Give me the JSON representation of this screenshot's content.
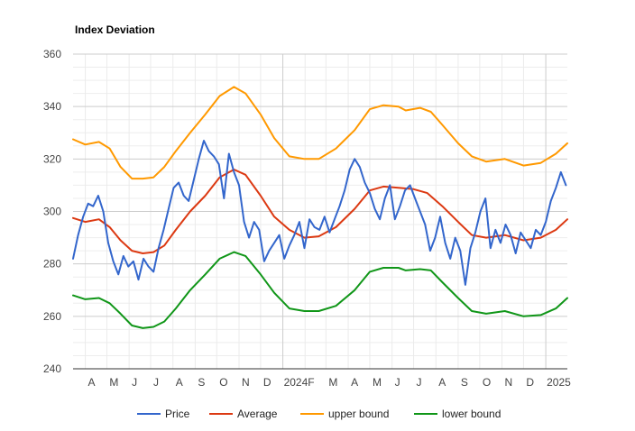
{
  "chart_data": {
    "type": "line",
    "title": "Index Deviation",
    "xlabel": "",
    "ylabel": "",
    "ylim": [
      240,
      360
    ],
    "yticks": [
      240,
      260,
      280,
      300,
      320,
      340,
      360
    ],
    "x_range": [
      "2023-03-15",
      "2025-01-31"
    ],
    "x_ticks": [
      {
        "date": "2023-04-01",
        "label": "A"
      },
      {
        "date": "2023-05-01",
        "label": "M"
      },
      {
        "date": "2023-06-01",
        "label": "J"
      },
      {
        "date": "2023-07-01",
        "label": "J"
      },
      {
        "date": "2023-08-01",
        "label": "A"
      },
      {
        "date": "2023-09-01",
        "label": "S"
      },
      {
        "date": "2023-10-01",
        "label": "O"
      },
      {
        "date": "2023-11-01",
        "label": "N"
      },
      {
        "date": "2023-12-01",
        "label": "D"
      },
      {
        "date": "2024-01-01",
        "label": "2024"
      },
      {
        "date": "2024-02-01",
        "label": "F"
      },
      {
        "date": "2024-03-01",
        "label": "M"
      },
      {
        "date": "2024-04-01",
        "label": "A"
      },
      {
        "date": "2024-05-01",
        "label": "M"
      },
      {
        "date": "2024-06-01",
        "label": "J"
      },
      {
        "date": "2024-07-01",
        "label": "J"
      },
      {
        "date": "2024-08-01",
        "label": "A"
      },
      {
        "date": "2024-09-01",
        "label": "S"
      },
      {
        "date": "2024-10-01",
        "label": "O"
      },
      {
        "date": "2024-11-01",
        "label": "N"
      },
      {
        "date": "2024-12-01",
        "label": "D"
      },
      {
        "date": "2025-01-01",
        "label": "2025"
      }
    ],
    "grid": true,
    "legend_position": "bottom",
    "series": [
      {
        "name": "Price",
        "color": "#3366cc",
        "points": [
          [
            "2023-03-15",
            282
          ],
          [
            "2023-03-22",
            291
          ],
          [
            "2023-03-29",
            298
          ],
          [
            "2023-04-05",
            303
          ],
          [
            "2023-04-12",
            302
          ],
          [
            "2023-04-19",
            306
          ],
          [
            "2023-04-26",
            300
          ],
          [
            "2023-05-03",
            288
          ],
          [
            "2023-05-10",
            281
          ],
          [
            "2023-05-17",
            276
          ],
          [
            "2023-05-24",
            283
          ],
          [
            "2023-05-31",
            279
          ],
          [
            "2023-06-07",
            281
          ],
          [
            "2023-06-14",
            274
          ],
          [
            "2023-06-21",
            282
          ],
          [
            "2023-06-28",
            279
          ],
          [
            "2023-07-05",
            277
          ],
          [
            "2023-07-12",
            286
          ],
          [
            "2023-07-19",
            293
          ],
          [
            "2023-07-26",
            301
          ],
          [
            "2023-08-02",
            309
          ],
          [
            "2023-08-09",
            311
          ],
          [
            "2023-08-16",
            306
          ],
          [
            "2023-08-23",
            304
          ],
          [
            "2023-08-30",
            312
          ],
          [
            "2023-09-06",
            320
          ],
          [
            "2023-09-13",
            327
          ],
          [
            "2023-09-20",
            323
          ],
          [
            "2023-09-27",
            321
          ],
          [
            "2023-10-04",
            318
          ],
          [
            "2023-10-11",
            305
          ],
          [
            "2023-10-18",
            322
          ],
          [
            "2023-10-25",
            315
          ],
          [
            "2023-11-01",
            310
          ],
          [
            "2023-11-08",
            296
          ],
          [
            "2023-11-15",
            290
          ],
          [
            "2023-11-22",
            296
          ],
          [
            "2023-11-29",
            293
          ],
          [
            "2023-12-06",
            281
          ],
          [
            "2023-12-13",
            285
          ],
          [
            "2023-12-20",
            288
          ],
          [
            "2023-12-27",
            291
          ],
          [
            "2024-01-03",
            282
          ],
          [
            "2024-01-10",
            287
          ],
          [
            "2024-01-17",
            291
          ],
          [
            "2024-01-24",
            296
          ],
          [
            "2024-01-31",
            286
          ],
          [
            "2024-02-07",
            297
          ],
          [
            "2024-02-14",
            294
          ],
          [
            "2024-02-21",
            293
          ],
          [
            "2024-02-28",
            298
          ],
          [
            "2024-03-06",
            292
          ],
          [
            "2024-03-13",
            297
          ],
          [
            "2024-03-20",
            302
          ],
          [
            "2024-03-27",
            308
          ],
          [
            "2024-04-03",
            316
          ],
          [
            "2024-04-10",
            320
          ],
          [
            "2024-04-17",
            317
          ],
          [
            "2024-04-24",
            311
          ],
          [
            "2024-05-01",
            307
          ],
          [
            "2024-05-08",
            301
          ],
          [
            "2024-05-15",
            297
          ],
          [
            "2024-05-22",
            305
          ],
          [
            "2024-05-29",
            310
          ],
          [
            "2024-06-05",
            297
          ],
          [
            "2024-06-12",
            302
          ],
          [
            "2024-06-19",
            308
          ],
          [
            "2024-06-26",
            310
          ],
          [
            "2024-07-03",
            305
          ],
          [
            "2024-07-10",
            300
          ],
          [
            "2024-07-17",
            295
          ],
          [
            "2024-07-24",
            285
          ],
          [
            "2024-07-31",
            290
          ],
          [
            "2024-08-07",
            298
          ],
          [
            "2024-08-14",
            288
          ],
          [
            "2024-08-21",
            282
          ],
          [
            "2024-08-28",
            290
          ],
          [
            "2024-09-04",
            285
          ],
          [
            "2024-09-11",
            272
          ],
          [
            "2024-09-18",
            286
          ],
          [
            "2024-09-25",
            292
          ],
          [
            "2024-10-02",
            300
          ],
          [
            "2024-10-09",
            305
          ],
          [
            "2024-10-16",
            286
          ],
          [
            "2024-10-23",
            293
          ],
          [
            "2024-10-30",
            288
          ],
          [
            "2024-11-06",
            295
          ],
          [
            "2024-11-13",
            291
          ],
          [
            "2024-11-20",
            284
          ],
          [
            "2024-11-27",
            292
          ],
          [
            "2024-12-04",
            289
          ],
          [
            "2024-12-11",
            286
          ],
          [
            "2024-12-18",
            293
          ],
          [
            "2024-12-25",
            291
          ],
          [
            "2025-01-01",
            296
          ],
          [
            "2025-01-08",
            304
          ],
          [
            "2025-01-15",
            309
          ],
          [
            "2025-01-22",
            315
          ],
          [
            "2025-01-29",
            310
          ]
        ]
      },
      {
        "name": "Average",
        "color": "#dc3912",
        "points": [
          [
            "2023-03-15",
            297.5
          ],
          [
            "2023-04-01",
            296
          ],
          [
            "2023-04-20",
            297
          ],
          [
            "2023-05-05",
            294
          ],
          [
            "2023-05-20",
            289
          ],
          [
            "2023-06-05",
            285
          ],
          [
            "2023-06-20",
            284
          ],
          [
            "2023-07-05",
            284.5
          ],
          [
            "2023-07-20",
            287
          ],
          [
            "2023-08-05",
            293
          ],
          [
            "2023-08-25",
            300
          ],
          [
            "2023-09-15",
            306
          ],
          [
            "2023-10-05",
            313
          ],
          [
            "2023-10-25",
            316
          ],
          [
            "2023-11-10",
            314
          ],
          [
            "2023-12-01",
            306
          ],
          [
            "2023-12-20",
            298
          ],
          [
            "2024-01-10",
            293
          ],
          [
            "2024-01-31",
            290
          ],
          [
            "2024-02-20",
            290.5
          ],
          [
            "2024-03-15",
            294
          ],
          [
            "2024-04-10",
            301
          ],
          [
            "2024-05-01",
            308
          ],
          [
            "2024-05-20",
            309.5
          ],
          [
            "2024-06-10",
            309
          ],
          [
            "2024-07-01",
            308.5
          ],
          [
            "2024-07-20",
            307
          ],
          [
            "2024-08-10",
            302
          ],
          [
            "2024-09-01",
            296
          ],
          [
            "2024-09-20",
            291
          ],
          [
            "2024-10-10",
            290
          ],
          [
            "2024-11-05",
            291
          ],
          [
            "2024-12-01",
            289
          ],
          [
            "2024-12-25",
            290
          ],
          [
            "2025-01-15",
            293
          ],
          [
            "2025-01-31",
            297
          ]
        ]
      },
      {
        "name": "upper bound",
        "color": "#ff9900",
        "points": [
          [
            "2023-03-15",
            327.5
          ],
          [
            "2023-04-01",
            325.5
          ],
          [
            "2023-04-20",
            326.5
          ],
          [
            "2023-05-05",
            324
          ],
          [
            "2023-05-20",
            317
          ],
          [
            "2023-06-05",
            312.5
          ],
          [
            "2023-06-20",
            312.5
          ],
          [
            "2023-07-05",
            313
          ],
          [
            "2023-07-20",
            317
          ],
          [
            "2023-08-05",
            323
          ],
          [
            "2023-08-25",
            330
          ],
          [
            "2023-09-15",
            337
          ],
          [
            "2023-10-05",
            344
          ],
          [
            "2023-10-25",
            347.5
          ],
          [
            "2023-11-10",
            345
          ],
          [
            "2023-12-01",
            337
          ],
          [
            "2023-12-20",
            328
          ],
          [
            "2024-01-10",
            321
          ],
          [
            "2024-01-31",
            320
          ],
          [
            "2024-02-20",
            320
          ],
          [
            "2024-03-15",
            324
          ],
          [
            "2024-04-10",
            331
          ],
          [
            "2024-05-01",
            339
          ],
          [
            "2024-05-20",
            340.5
          ],
          [
            "2024-06-10",
            340
          ],
          [
            "2024-06-20",
            338.5
          ],
          [
            "2024-07-10",
            339.5
          ],
          [
            "2024-07-25",
            338
          ],
          [
            "2024-08-10",
            333
          ],
          [
            "2024-09-01",
            326
          ],
          [
            "2024-09-20",
            321
          ],
          [
            "2024-10-10",
            319
          ],
          [
            "2024-11-05",
            320
          ],
          [
            "2024-12-01",
            317.5
          ],
          [
            "2024-12-25",
            318.5
          ],
          [
            "2025-01-15",
            322
          ],
          [
            "2025-01-31",
            326
          ]
        ]
      },
      {
        "name": "lower bound",
        "color": "#109618",
        "points": [
          [
            "2023-03-15",
            268
          ],
          [
            "2023-04-01",
            266.5
          ],
          [
            "2023-04-20",
            267
          ],
          [
            "2023-05-05",
            265
          ],
          [
            "2023-05-20",
            261
          ],
          [
            "2023-06-05",
            256.5
          ],
          [
            "2023-06-20",
            255.5
          ],
          [
            "2023-07-05",
            256
          ],
          [
            "2023-07-20",
            258
          ],
          [
            "2023-08-05",
            263
          ],
          [
            "2023-08-25",
            270
          ],
          [
            "2023-09-15",
            276
          ],
          [
            "2023-10-05",
            282
          ],
          [
            "2023-10-25",
            284.5
          ],
          [
            "2023-11-10",
            283
          ],
          [
            "2023-12-01",
            276
          ],
          [
            "2023-12-20",
            269
          ],
          [
            "2024-01-10",
            263
          ],
          [
            "2024-01-31",
            262
          ],
          [
            "2024-02-20",
            262
          ],
          [
            "2024-03-15",
            264
          ],
          [
            "2024-04-10",
            270
          ],
          [
            "2024-05-01",
            277
          ],
          [
            "2024-05-20",
            278.5
          ],
          [
            "2024-06-10",
            278.5
          ],
          [
            "2024-06-20",
            277.5
          ],
          [
            "2024-07-10",
            278
          ],
          [
            "2024-07-25",
            277.5
          ],
          [
            "2024-08-10",
            273
          ],
          [
            "2024-09-01",
            267
          ],
          [
            "2024-09-20",
            262
          ],
          [
            "2024-10-10",
            261
          ],
          [
            "2024-11-05",
            262
          ],
          [
            "2024-12-01",
            260
          ],
          [
            "2024-12-25",
            260.5
          ],
          [
            "2025-01-15",
            263
          ],
          [
            "2025-01-31",
            267
          ]
        ]
      }
    ]
  }
}
